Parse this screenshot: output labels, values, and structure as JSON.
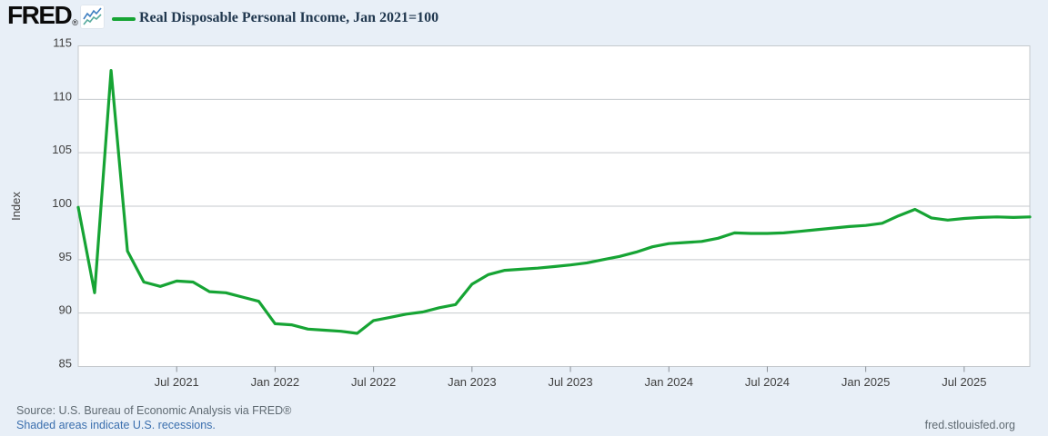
{
  "header": {
    "logo_text": "FRED",
    "registered_mark": "®",
    "series_label": "Real Disposable Personal Income, Jan 2021=100"
  },
  "footer": {
    "source_line": "Source: U.S. Bureau of Economic Analysis via FRED®",
    "recession_note": "Shaded areas indicate U.S. recessions.",
    "site_link": "fred.stlouisfed.org"
  },
  "colors": {
    "background": "#e8eff7",
    "plot_background": "#ffffff",
    "gridline": "#c5c9cd",
    "tick_mark": "#8a9097",
    "axis_text": "#404040",
    "line": "#16a434",
    "title_text": "#21384f",
    "source_text": "#5f6a72",
    "link_text": "#3b6fae",
    "logo_text": "#0b0b0b",
    "icon_line_blue": "#3f7fc1",
    "icon_line_teal": "#58ab9e"
  },
  "chart_data": {
    "type": "line",
    "title": "Real Disposable Personal Income, Jan 2021=100",
    "ylabel": "Index",
    "ylim": [
      85,
      115
    ],
    "yticks": [
      85,
      90,
      95,
      100,
      105,
      110,
      115
    ],
    "grid": true,
    "legend_position": "top-left",
    "line_color": "#16a434",
    "x_unit": "month",
    "x_range": [
      "2021-01",
      "2025-11"
    ],
    "x_ticks": [
      {
        "label": "Jul 2021",
        "month_index": 6
      },
      {
        "label": "Jan 2022",
        "month_index": 12
      },
      {
        "label": "Jul 2022",
        "month_index": 18
      },
      {
        "label": "Jan 2023",
        "month_index": 24
      },
      {
        "label": "Jul 2023",
        "month_index": 30
      },
      {
        "label": "Jan 2024",
        "month_index": 36
      },
      {
        "label": "Jul 2024",
        "month_index": 42
      },
      {
        "label": "Jan 2025",
        "month_index": 48
      },
      {
        "label": "Jul 2025",
        "month_index": 54
      }
    ],
    "months": [
      "2021-01",
      "2021-02",
      "2021-03",
      "2021-04",
      "2021-05",
      "2021-06",
      "2021-07",
      "2021-08",
      "2021-09",
      "2021-10",
      "2021-11",
      "2021-12",
      "2022-01",
      "2022-02",
      "2022-03",
      "2022-04",
      "2022-05",
      "2022-06",
      "2022-07",
      "2022-08",
      "2022-09",
      "2022-10",
      "2022-11",
      "2022-12",
      "2023-01",
      "2023-02",
      "2023-03",
      "2023-04",
      "2023-05",
      "2023-06",
      "2023-07",
      "2023-08",
      "2023-09",
      "2023-10",
      "2023-11",
      "2023-12",
      "2024-01",
      "2024-02",
      "2024-03",
      "2024-04",
      "2024-05",
      "2024-06",
      "2024-07",
      "2024-08",
      "2024-09",
      "2024-10",
      "2024-11",
      "2024-12",
      "2025-01",
      "2025-02",
      "2025-03",
      "2025-04",
      "2025-05",
      "2025-06",
      "2025-07",
      "2025-08",
      "2025-09",
      "2025-10",
      "2025-11"
    ],
    "values": [
      99.9,
      91.9,
      112.7,
      95.8,
      92.9,
      92.5,
      93.0,
      92.9,
      92.0,
      91.9,
      91.5,
      91.1,
      89.0,
      88.9,
      88.5,
      88.4,
      88.3,
      88.1,
      89.3,
      89.6,
      89.9,
      90.1,
      90.5,
      90.8,
      92.7,
      93.6,
      94.0,
      94.1,
      94.2,
      94.35,
      94.5,
      94.7,
      95.0,
      95.3,
      95.7,
      96.2,
      96.5,
      96.6,
      96.7,
      97.0,
      97.5,
      97.45,
      97.45,
      97.5,
      97.65,
      97.8,
      97.95,
      98.1,
      98.2,
      98.4,
      99.1,
      99.7,
      98.9,
      98.7,
      98.85,
      98.95,
      99.0,
      98.95,
      99.0
    ]
  }
}
